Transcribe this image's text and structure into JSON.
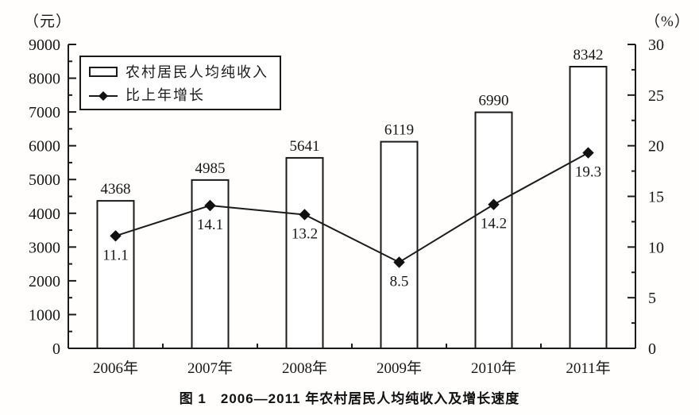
{
  "chart_data": {
    "type": "combo-bar-line",
    "caption": "图 1　2006—2011 年农村居民人均纯收入及增长速度",
    "categories": [
      "2006年",
      "2007年",
      "2008年",
      "2009年",
      "2010年",
      "2011年"
    ],
    "series": [
      {
        "name": "农村居民人均纯收入",
        "type": "bar",
        "axis": "left",
        "unit": "元",
        "values": [
          4368,
          4985,
          5641,
          6119,
          6990,
          8342
        ]
      },
      {
        "name": "比上年增长",
        "type": "line",
        "axis": "right",
        "unit": "%",
        "values": [
          11.1,
          14.1,
          13.2,
          8.5,
          14.2,
          19.3
        ]
      }
    ],
    "left_axis": {
      "label": "（元）",
      "min": 0,
      "max": 9000,
      "major_step": 1000,
      "minor_step": 500,
      "ticks": [
        0,
        1000,
        2000,
        3000,
        4000,
        5000,
        6000,
        7000,
        8000,
        9000
      ]
    },
    "right_axis": {
      "label": "（%）",
      "min": 0,
      "max": 30,
      "major_step": 5,
      "minor_step": 2.5,
      "ticks": [
        0,
        5,
        10,
        15,
        20,
        25,
        30
      ]
    },
    "legend": {
      "position": "inside-top-left",
      "items": [
        {
          "marker": "open-rectangle",
          "series": 0
        },
        {
          "marker": "diamond-line",
          "series": 1
        }
      ]
    },
    "colors": {
      "ink": "#1b1b1b",
      "background": "#ffffff",
      "bar_fill": "#ffffff"
    },
    "grid": "off"
  }
}
